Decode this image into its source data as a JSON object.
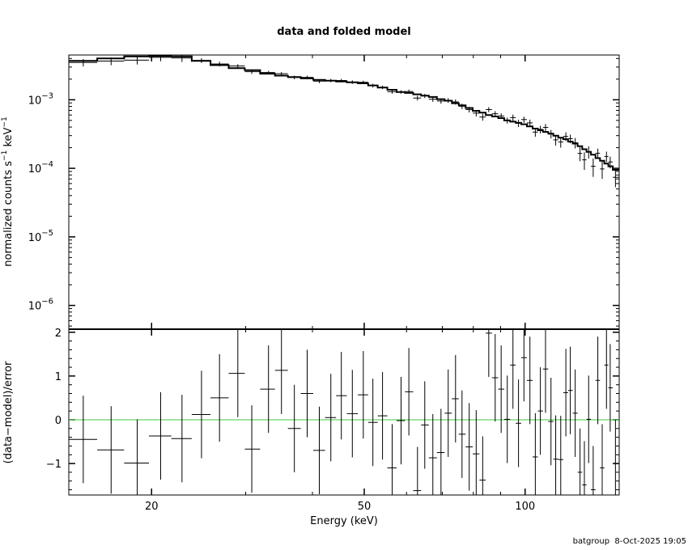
{
  "chart_data": {
    "type": "scatter",
    "title": "data and folded model",
    "footer": "batgroup  8-Oct-2025 19:05",
    "xlabel": "Energy (keV)",
    "x_scale": "log",
    "xlim": [
      14,
      150
    ],
    "x_ticks": [
      20,
      50,
      100
    ],
    "x_tick_labels": [
      "20",
      "50",
      "100"
    ],
    "zero_line_color": "#3cc83c",
    "top_panel": {
      "ylabel_main": "normalized counts s",
      "ylabel_exp1": "−1",
      "ylabel_mid": " keV",
      "ylabel_exp2": "−1",
      "y_scale": "log",
      "ylim": [
        4.5e-07,
        0.0045
      ],
      "y_ticks": [
        0.001,
        0.0001,
        1e-05,
        1e-06
      ],
      "y_tick_labels": [
        {
          "base": "10",
          "exp": "−3"
        },
        {
          "base": "10",
          "exp": "−4"
        },
        {
          "base": "10",
          "exp": "−5"
        },
        {
          "base": "10",
          "exp": "−6"
        }
      ]
    },
    "bottom_panel": {
      "ylabel": "(data−model)/error",
      "ylim": [
        -1.72,
        2.07
      ],
      "y_ticks": [
        2,
        1,
        0,
        -1
      ],
      "y_tick_labels": [
        "2",
        "1",
        "0",
        "−1"
      ]
    },
    "energy": [
      14.9,
      16.8,
      18.8,
      20.8,
      22.8,
      24.8,
      26.8,
      29.0,
      30.8,
      33.1,
      35.0,
      37.0,
      39.1,
      41.2,
      43.3,
      45.3,
      47.5,
      49.8,
      51.9,
      54.1,
      56.4,
      58.6,
      60.6,
      62.9,
      64.9,
      67.2,
      69.6,
      71.8,
      74.1,
      76.2,
      78.6,
      81.0,
      83.3,
      85.5,
      87.9,
      90.2,
      92.6,
      94.9,
      97.2,
      99.5,
      102.1,
      104.5,
      106.8,
      109.2,
      111.8,
      114.1,
      116.6,
      119.2,
      121.5,
      124.1,
      126.7,
      129.1,
      131.5,
      134.1,
      136.8,
      139.4,
      142.0,
      144.3,
      147.6
    ],
    "series": [
      {
        "kind": "data",
        "values": [
          0.0035,
          0.00367,
          0.00379,
          0.00416,
          0.00408,
          0.00374,
          0.00333,
          0.00311,
          0.00257,
          0.0025,
          0.0024,
          0.00212,
          0.00212,
          0.00187,
          0.00191,
          0.00191,
          0.00181,
          0.0018,
          0.00161,
          0.00152,
          0.00131,
          0.0013,
          0.00132,
          0.00106,
          0.00114,
          0.00102,
          0.00096,
          0.00098,
          0.00093,
          0.000805,
          0.00072,
          0.00064,
          0.00056,
          0.00072,
          0.000625,
          0.00058,
          0.0005,
          0.00055,
          0.000455,
          0.000515,
          0.00046,
          0.000338,
          0.00037,
          0.000395,
          0.000318,
          0.00026,
          0.000242,
          0.000292,
          0.000271,
          0.000236,
          0.000165,
          0.000133,
          0.000174,
          0.000107,
          0.000166,
          9.8e-05,
          0.000149,
          0.000124,
          7.4e-05
        ],
        "errors": [
          0.00044,
          0.00048,
          0.00052,
          0.00052,
          0.00052,
          0.0003,
          0.00026,
          0.0002,
          0.00019,
          0.00014,
          0.000135,
          0.00013,
          0.00012,
          0.00012,
          0.00011,
          0.00011,
          0.00011,
          0.0001,
          0.0001,
          9e-05,
          8.4e-05,
          7.8e-05,
          8.8e-05,
          8.4e-05,
          8e-05,
          8.8e-05,
          8.2e-05,
          7.8e-05,
          8e-05,
          7.5e-05,
          6.8e-05,
          6.9e-05,
          6.5e-05,
          6e-05,
          5.7e-05,
          5.4e-05,
          5e-05,
          5.8e-05,
          5.5e-05,
          5.3e-05,
          5.3e-05,
          4.9e-05,
          4.7e-05,
          4.8e-05,
          4.5e-05,
          4.5e-05,
          4.2e-05,
          4.3e-05,
          3.9e-05,
          4.1e-05,
          3.8e-05,
          3.8e-05,
          3.5e-05,
          3.2e-05,
          2.8e-05,
          2.8e-05,
          2.6e-05,
          2.4e-05,
          2.1e-05
        ]
      },
      {
        "kind": "folded model",
        "values": [
          0.0037,
          0.004,
          0.0043,
          0.00435,
          0.0043,
          0.0037,
          0.0032,
          0.0029,
          0.0027,
          0.0024,
          0.00225,
          0.00215,
          0.00205,
          0.00195,
          0.0019,
          0.00185,
          0.0018,
          0.00174,
          0.00162,
          0.00151,
          0.0014,
          0.0013,
          0.00126,
          0.0012,
          0.00115,
          0.0011,
          0.00102,
          0.00097,
          0.00089,
          0.00083,
          0.00076,
          0.00069,
          0.00065,
          0.0006,
          0.00057,
          0.00054,
          0.0005,
          0.00048,
          0.00046,
          0.00044,
          0.00041,
          0.00038,
          0.00036,
          0.00034,
          0.00032,
          0.0003,
          0.00028,
          0.000266,
          0.000245,
          0.00023,
          0.00021,
          0.00019,
          0.000174,
          0.000158,
          0.000141,
          0.000129,
          0.000117,
          0.000107,
          9.5e-05
        ]
      },
      {
        "kind": "residual",
        "values": [
          -0.45,
          -0.69,
          -0.99,
          -0.37,
          -0.43,
          0.12,
          0.5,
          1.06,
          -0.67,
          0.7,
          1.13,
          -0.2,
          0.6,
          -0.7,
          0.05,
          0.55,
          0.14,
          0.57,
          -0.06,
          0.09,
          -1.1,
          -0.02,
          0.64,
          -1.62,
          -0.12,
          -0.87,
          -0.75,
          0.15,
          0.48,
          -0.33,
          -0.62,
          -0.78,
          -1.38,
          1.98,
          0.96,
          0.7,
          0.01,
          1.25,
          -0.08,
          1.42,
          0.9,
          -0.85,
          0.2,
          1.16,
          -0.04,
          -0.9,
          -0.91,
          0.62,
          0.67,
          0.15,
          -1.2,
          -1.49,
          0.01,
          -1.6,
          0.9,
          -1.1,
          1.25,
          0.73,
          -1.0
        ],
        "errors": 1
      }
    ]
  }
}
